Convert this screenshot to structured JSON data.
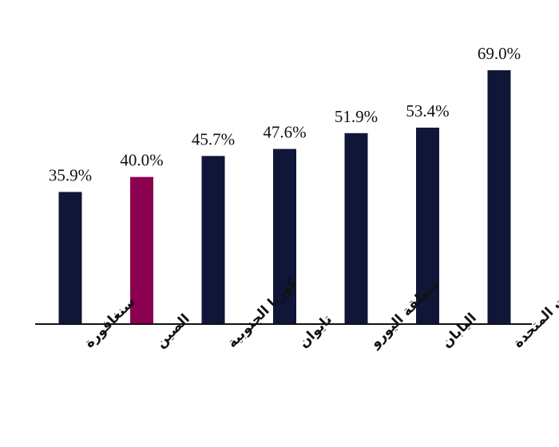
{
  "chart_data": {
    "type": "bar",
    "categories": [
      "سنغافورة",
      "الصين",
      "كوريا الجنوبية",
      "تايوان",
      "منطقة اليورو",
      "اليابان",
      "الولايات المتحدة"
    ],
    "values": [
      35.9,
      40.0,
      45.7,
      47.6,
      51.9,
      53.4,
      69.0
    ],
    "value_labels": [
      "35.9%",
      "40.0%",
      "45.7%",
      "47.6%",
      "51.9%",
      "53.4%",
      "69.0%"
    ],
    "unit": "%",
    "title": "",
    "xlabel": "",
    "ylabel": "",
    "ylim": [
      0,
      69.0
    ],
    "grid": false,
    "legend": "none",
    "colors": {
      "default": "#0f1638",
      "highlight": "#8b0050",
      "axis": "#111111"
    },
    "highlight_index": 1
  }
}
